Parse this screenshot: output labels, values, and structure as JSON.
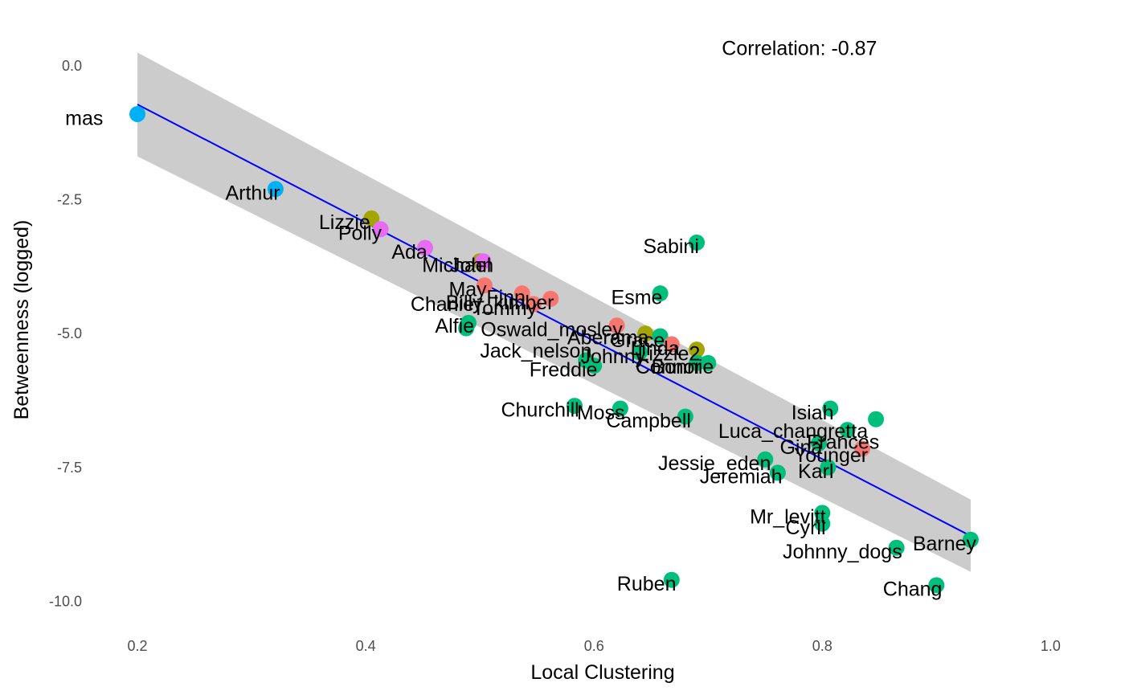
{
  "chart_data": {
    "type": "scatter",
    "title": "",
    "xlabel": "Local Clustering",
    "ylabel": "Betweenness (logged)",
    "xlim": [
      0.15,
      1.03
    ],
    "ylim": [
      -10.55,
      0.78
    ],
    "x_ticks": [
      0.2,
      0.4,
      0.6,
      0.8,
      1.0
    ],
    "x_tick_labels": [
      "0.2",
      "0.4",
      "0.6",
      "0.8",
      "1.0"
    ],
    "y_ticks": [
      0.0,
      -2.5,
      -5.0,
      -7.5,
      -10.0
    ],
    "y_tick_labels": [
      "0.0",
      "-2.5",
      "-5.0",
      "-7.5",
      "-10.0"
    ],
    "grid": false,
    "legend": "none",
    "annotation": "Correlation: -0.87",
    "annotation_position": {
      "x": 0.78,
      "y": 0.2
    },
    "regression": {
      "color": "#0000ff",
      "band_color": "#cccccc",
      "x_range": [
        0.2,
        0.93
      ],
      "line": [
        [
          0.2,
          -0.72
        ],
        [
          0.93,
          -8.78
        ]
      ],
      "band_upper": [
        [
          0.2,
          0.25
        ],
        [
          0.93,
          -8.1
        ]
      ],
      "band_lower": [
        [
          0.2,
          -1.69
        ],
        [
          0.93,
          -9.45
        ]
      ]
    },
    "colors": {
      "red": "#f8766d",
      "olive": "#a3a500",
      "green": "#00bf7d",
      "blue": "#00b0f6",
      "purple": "#e76bf3"
    },
    "points": [
      {
        "name": "mas",
        "x": 0.2,
        "y": -0.9,
        "color": "blue"
      },
      {
        "name": "Arthur",
        "x": 0.321,
        "y": -2.3,
        "color": "blue"
      },
      {
        "name": "Lizzie",
        "x": 0.405,
        "y": -2.85,
        "color": "olive"
      },
      {
        "name": "Polly",
        "x": 0.413,
        "y": -3.05,
        "color": "purple"
      },
      {
        "name": "Ada",
        "x": 0.452,
        "y": -3.4,
        "color": "purple"
      },
      {
        "name": "Michael",
        "x": 0.5,
        "y": -3.65,
        "color": "olive"
      },
      {
        "name": "John",
        "x": 0.503,
        "y": -3.65,
        "color": "purple"
      },
      {
        "name": "May",
        "x": 0.504,
        "y": -4.1,
        "color": "red"
      },
      {
        "name": "Finn",
        "x": 0.537,
        "y": -4.25,
        "color": "red"
      },
      {
        "name": "Tommy",
        "x": 0.547,
        "y": -4.45,
        "color": "red"
      },
      {
        "name": "Billy_kimber",
        "x": 0.562,
        "y": -4.35,
        "color": "red"
      },
      {
        "name": "Charlie",
        "x": 0.49,
        "y": -4.8,
        "color": "green"
      },
      {
        "name": "Alfie",
        "x": 0.488,
        "y": -4.9,
        "color": "green"
      },
      {
        "name": "Oswald_mosley",
        "x": 0.62,
        "y": -4.85,
        "color": "red"
      },
      {
        "name": "Esme",
        "x": 0.658,
        "y": -4.25,
        "color": "green"
      },
      {
        "name": "Sabini",
        "x": 0.69,
        "y": -3.3,
        "color": "green"
      },
      {
        "name": "Aberama",
        "x": 0.645,
        "y": -5.0,
        "color": "olive"
      },
      {
        "name": "Grace",
        "x": 0.658,
        "y": -5.05,
        "color": "green"
      },
      {
        "name": "Linda",
        "x": 0.668,
        "y": -5.2,
        "color": "red"
      },
      {
        "name": "Lizzie2",
        "x": 0.69,
        "y": -5.3,
        "color": "olive"
      },
      {
        "name": "Jack_nelson",
        "x": 0.593,
        "y": -5.5,
        "color": "green"
      },
      {
        "name": "Johnny",
        "x": 0.64,
        "y": -5.35,
        "color": "green"
      },
      {
        "name": "Freddie",
        "x": 0.6,
        "y": -5.6,
        "color": "green"
      },
      {
        "name": "Connor",
        "x": 0.69,
        "y": -5.55,
        "color": "green"
      },
      {
        "name": "Bonnie",
        "x": 0.7,
        "y": -5.55,
        "color": "green"
      },
      {
        "name": "Churchill",
        "x": 0.583,
        "y": -6.35,
        "color": "green"
      },
      {
        "name": "Moss",
        "x": 0.623,
        "y": -6.4,
        "color": "green"
      },
      {
        "name": "Campbell",
        "x": 0.68,
        "y": -6.55,
        "color": "green"
      },
      {
        "name": "Isiah",
        "x": 0.807,
        "y": -6.4,
        "color": "green"
      },
      {
        "name": "Luca_changretta",
        "x": 0.822,
        "y": -6.8,
        "color": "green"
      },
      {
        "name": "Frances",
        "x": 0.847,
        "y": -6.6,
        "color": "green"
      },
      {
        "name": "Younger",
        "x": 0.835,
        "y": -7.15,
        "color": "red"
      },
      {
        "name": "Gina",
        "x": 0.797,
        "y": -7.05,
        "color": "green"
      },
      {
        "name": "Jessie_eden",
        "x": 0.75,
        "y": -7.35,
        "color": "green"
      },
      {
        "name": "Karl",
        "x": 0.805,
        "y": -7.5,
        "color": "green"
      },
      {
        "name": "Jeremiah",
        "x": 0.761,
        "y": -7.6,
        "color": "green"
      },
      {
        "name": "Mr_levitt",
        "x": 0.8,
        "y": -8.35,
        "color": "green"
      },
      {
        "name": "Cyril",
        "x": 0.8,
        "y": -8.55,
        "color": "green"
      },
      {
        "name": "Johnny_dogs",
        "x": 0.865,
        "y": -9.0,
        "color": "green"
      },
      {
        "name": "Barney",
        "x": 0.93,
        "y": -8.85,
        "color": "green"
      },
      {
        "name": "Ruben",
        "x": 0.668,
        "y": -9.6,
        "color": "green"
      },
      {
        "name": "Chang",
        "x": 0.9,
        "y": -9.7,
        "color": "green"
      }
    ],
    "labels": [
      {
        "text": "mas",
        "x": 0.17,
        "y": -1.1,
        "anchor": "end"
      },
      {
        "text": "Arthur",
        "x": 0.325,
        "y": -2.5,
        "anchor": "end"
      },
      {
        "text": "Lizzie",
        "x": 0.404,
        "y": -3.05,
        "anchor": "end"
      },
      {
        "text": "Polly",
        "x": 0.414,
        "y": -3.25,
        "anchor": "end"
      },
      {
        "text": "Ada",
        "x": 0.454,
        "y": -3.6,
        "anchor": "end"
      },
      {
        "text": "Michael",
        "x": 0.51,
        "y": -3.85,
        "anchor": "end"
      },
      {
        "text": "John",
        "x": 0.512,
        "y": -3.85,
        "anchor": "end"
      },
      {
        "text": "May",
        "x": 0.506,
        "y": -4.3,
        "anchor": "end"
      },
      {
        "text": "Finn",
        "x": 0.54,
        "y": -4.45,
        "anchor": "end"
      },
      {
        "text": "Tommy",
        "x": 0.55,
        "y": -4.65,
        "anchor": "end"
      },
      {
        "text": "Billy_kimber",
        "x": 0.565,
        "y": -4.55,
        "anchor": "end"
      },
      {
        "text": "Charlie",
        "x": 0.495,
        "y": -4.58,
        "anchor": "end"
      },
      {
        "text": "Alfie",
        "x": 0.495,
        "y": -4.98,
        "anchor": "end"
      },
      {
        "text": "Oswald_mosley",
        "x": 0.625,
        "y": -5.05,
        "anchor": "end"
      },
      {
        "text": "Esme",
        "x": 0.66,
        "y": -4.45,
        "anchor": "end"
      },
      {
        "text": "Sabini",
        "x": 0.692,
        "y": -3.5,
        "anchor": "end"
      },
      {
        "text": "Aberama",
        "x": 0.648,
        "y": -5.2,
        "anchor": "end"
      },
      {
        "text": "Grace",
        "x": 0.662,
        "y": -5.25,
        "anchor": "end"
      },
      {
        "text": "Linda",
        "x": 0.675,
        "y": -5.4,
        "anchor": "end"
      },
      {
        "text": "Lizzie2",
        "x": 0.693,
        "y": -5.5,
        "anchor": "end"
      },
      {
        "text": "Jack_nelson",
        "x": 0.598,
        "y": -5.45,
        "anchor": "end"
      },
      {
        "text": "Johnny",
        "x": 0.645,
        "y": -5.55,
        "anchor": "end"
      },
      {
        "text": "Freddie",
        "x": 0.603,
        "y": -5.8,
        "anchor": "end"
      },
      {
        "text": "Connor",
        "x": 0.694,
        "y": -5.75,
        "anchor": "end"
      },
      {
        "text": "Bonnie",
        "x": 0.705,
        "y": -5.75,
        "anchor": "end"
      },
      {
        "text": "Churchill",
        "x": 0.587,
        "y": -6.55,
        "anchor": "end"
      },
      {
        "text": "Moss",
        "x": 0.627,
        "y": -6.6,
        "anchor": "end"
      },
      {
        "text": "Campbell",
        "x": 0.685,
        "y": -6.75,
        "anchor": "end"
      },
      {
        "text": "Isiah",
        "x": 0.81,
        "y": -6.6,
        "anchor": "end"
      },
      {
        "text": "Luca_changretta",
        "x": 0.84,
        "y": -6.95,
        "anchor": "end"
      },
      {
        "text": "Frances",
        "x": 0.85,
        "y": -7.15,
        "anchor": "end"
      },
      {
        "text": "Younger",
        "x": 0.84,
        "y": -7.4,
        "anchor": "end"
      },
      {
        "text": "Gina",
        "x": 0.8,
        "y": -7.25,
        "anchor": "end"
      },
      {
        "text": "Jessie_eden",
        "x": 0.755,
        "y": -7.55,
        "anchor": "end"
      },
      {
        "text": "Karl",
        "x": 0.81,
        "y": -7.7,
        "anchor": "end"
      },
      {
        "text": "Jeremiah",
        "x": 0.765,
        "y": -7.8,
        "anchor": "end"
      },
      {
        "text": "Mr_levitt",
        "x": 0.803,
        "y": -8.55,
        "anchor": "end"
      },
      {
        "text": "Cyril",
        "x": 0.803,
        "y": -8.75,
        "anchor": "end"
      },
      {
        "text": "Johnny_dogs",
        "x": 0.87,
        "y": -9.2,
        "anchor": "end"
      },
      {
        "text": "Barney",
        "x": 0.935,
        "y": -9.05,
        "anchor": "end"
      },
      {
        "text": "Ruben",
        "x": 0.672,
        "y": -9.8,
        "anchor": "end"
      },
      {
        "text": "Chang",
        "x": 0.905,
        "y": -9.9,
        "anchor": "end"
      }
    ]
  }
}
